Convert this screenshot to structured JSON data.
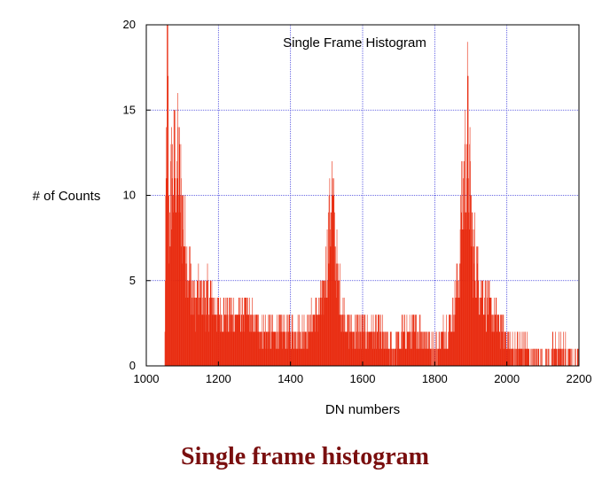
{
  "chart_data": {
    "type": "bar",
    "title": "Single Frame Histogram",
    "xlabel": "DN numbers",
    "ylabel": "# of Counts",
    "xlim": [
      1000,
      2200
    ],
    "ylim": [
      0,
      20
    ],
    "xticks": [
      1000,
      1200,
      1400,
      1600,
      1800,
      2000,
      2200
    ],
    "yticks": [
      0,
      5,
      10,
      15,
      20
    ],
    "grid": true,
    "series": [
      {
        "color": "#e8280c",
        "profile": [
          [
            1050,
            0
          ],
          [
            1055,
            12
          ],
          [
            1058,
            20
          ],
          [
            1062,
            8
          ],
          [
            1070,
            11
          ],
          [
            1085,
            12
          ],
          [
            1100,
            9
          ],
          [
            1115,
            6
          ],
          [
            1130,
            4
          ],
          [
            1150,
            4
          ],
          [
            1180,
            4
          ],
          [
            1200,
            3
          ],
          [
            1240,
            3
          ],
          [
            1280,
            3
          ],
          [
            1320,
            2
          ],
          [
            1360,
            2
          ],
          [
            1400,
            2
          ],
          [
            1440,
            2
          ],
          [
            1470,
            3
          ],
          [
            1490,
            4
          ],
          [
            1500,
            6
          ],
          [
            1510,
            9
          ],
          [
            1515,
            10
          ],
          [
            1520,
            8
          ],
          [
            1530,
            5
          ],
          [
            1545,
            3
          ],
          [
            1570,
            2
          ],
          [
            1600,
            2
          ],
          [
            1640,
            2
          ],
          [
            1680,
            1
          ],
          [
            1720,
            2
          ],
          [
            1760,
            2
          ],
          [
            1800,
            1
          ],
          [
            1830,
            2
          ],
          [
            1850,
            3
          ],
          [
            1865,
            5
          ],
          [
            1875,
            9
          ],
          [
            1885,
            12
          ],
          [
            1890,
            14
          ],
          [
            1895,
            11
          ],
          [
            1905,
            7
          ],
          [
            1920,
            5
          ],
          [
            1940,
            4
          ],
          [
            1960,
            3
          ],
          [
            1990,
            2
          ],
          [
            2010,
            1
          ],
          [
            2050,
            1
          ],
          [
            2100,
            0
          ],
          [
            2140,
            1
          ],
          [
            2200,
            0
          ]
        ]
      }
    ],
    "caption": "Single frame histogram"
  }
}
